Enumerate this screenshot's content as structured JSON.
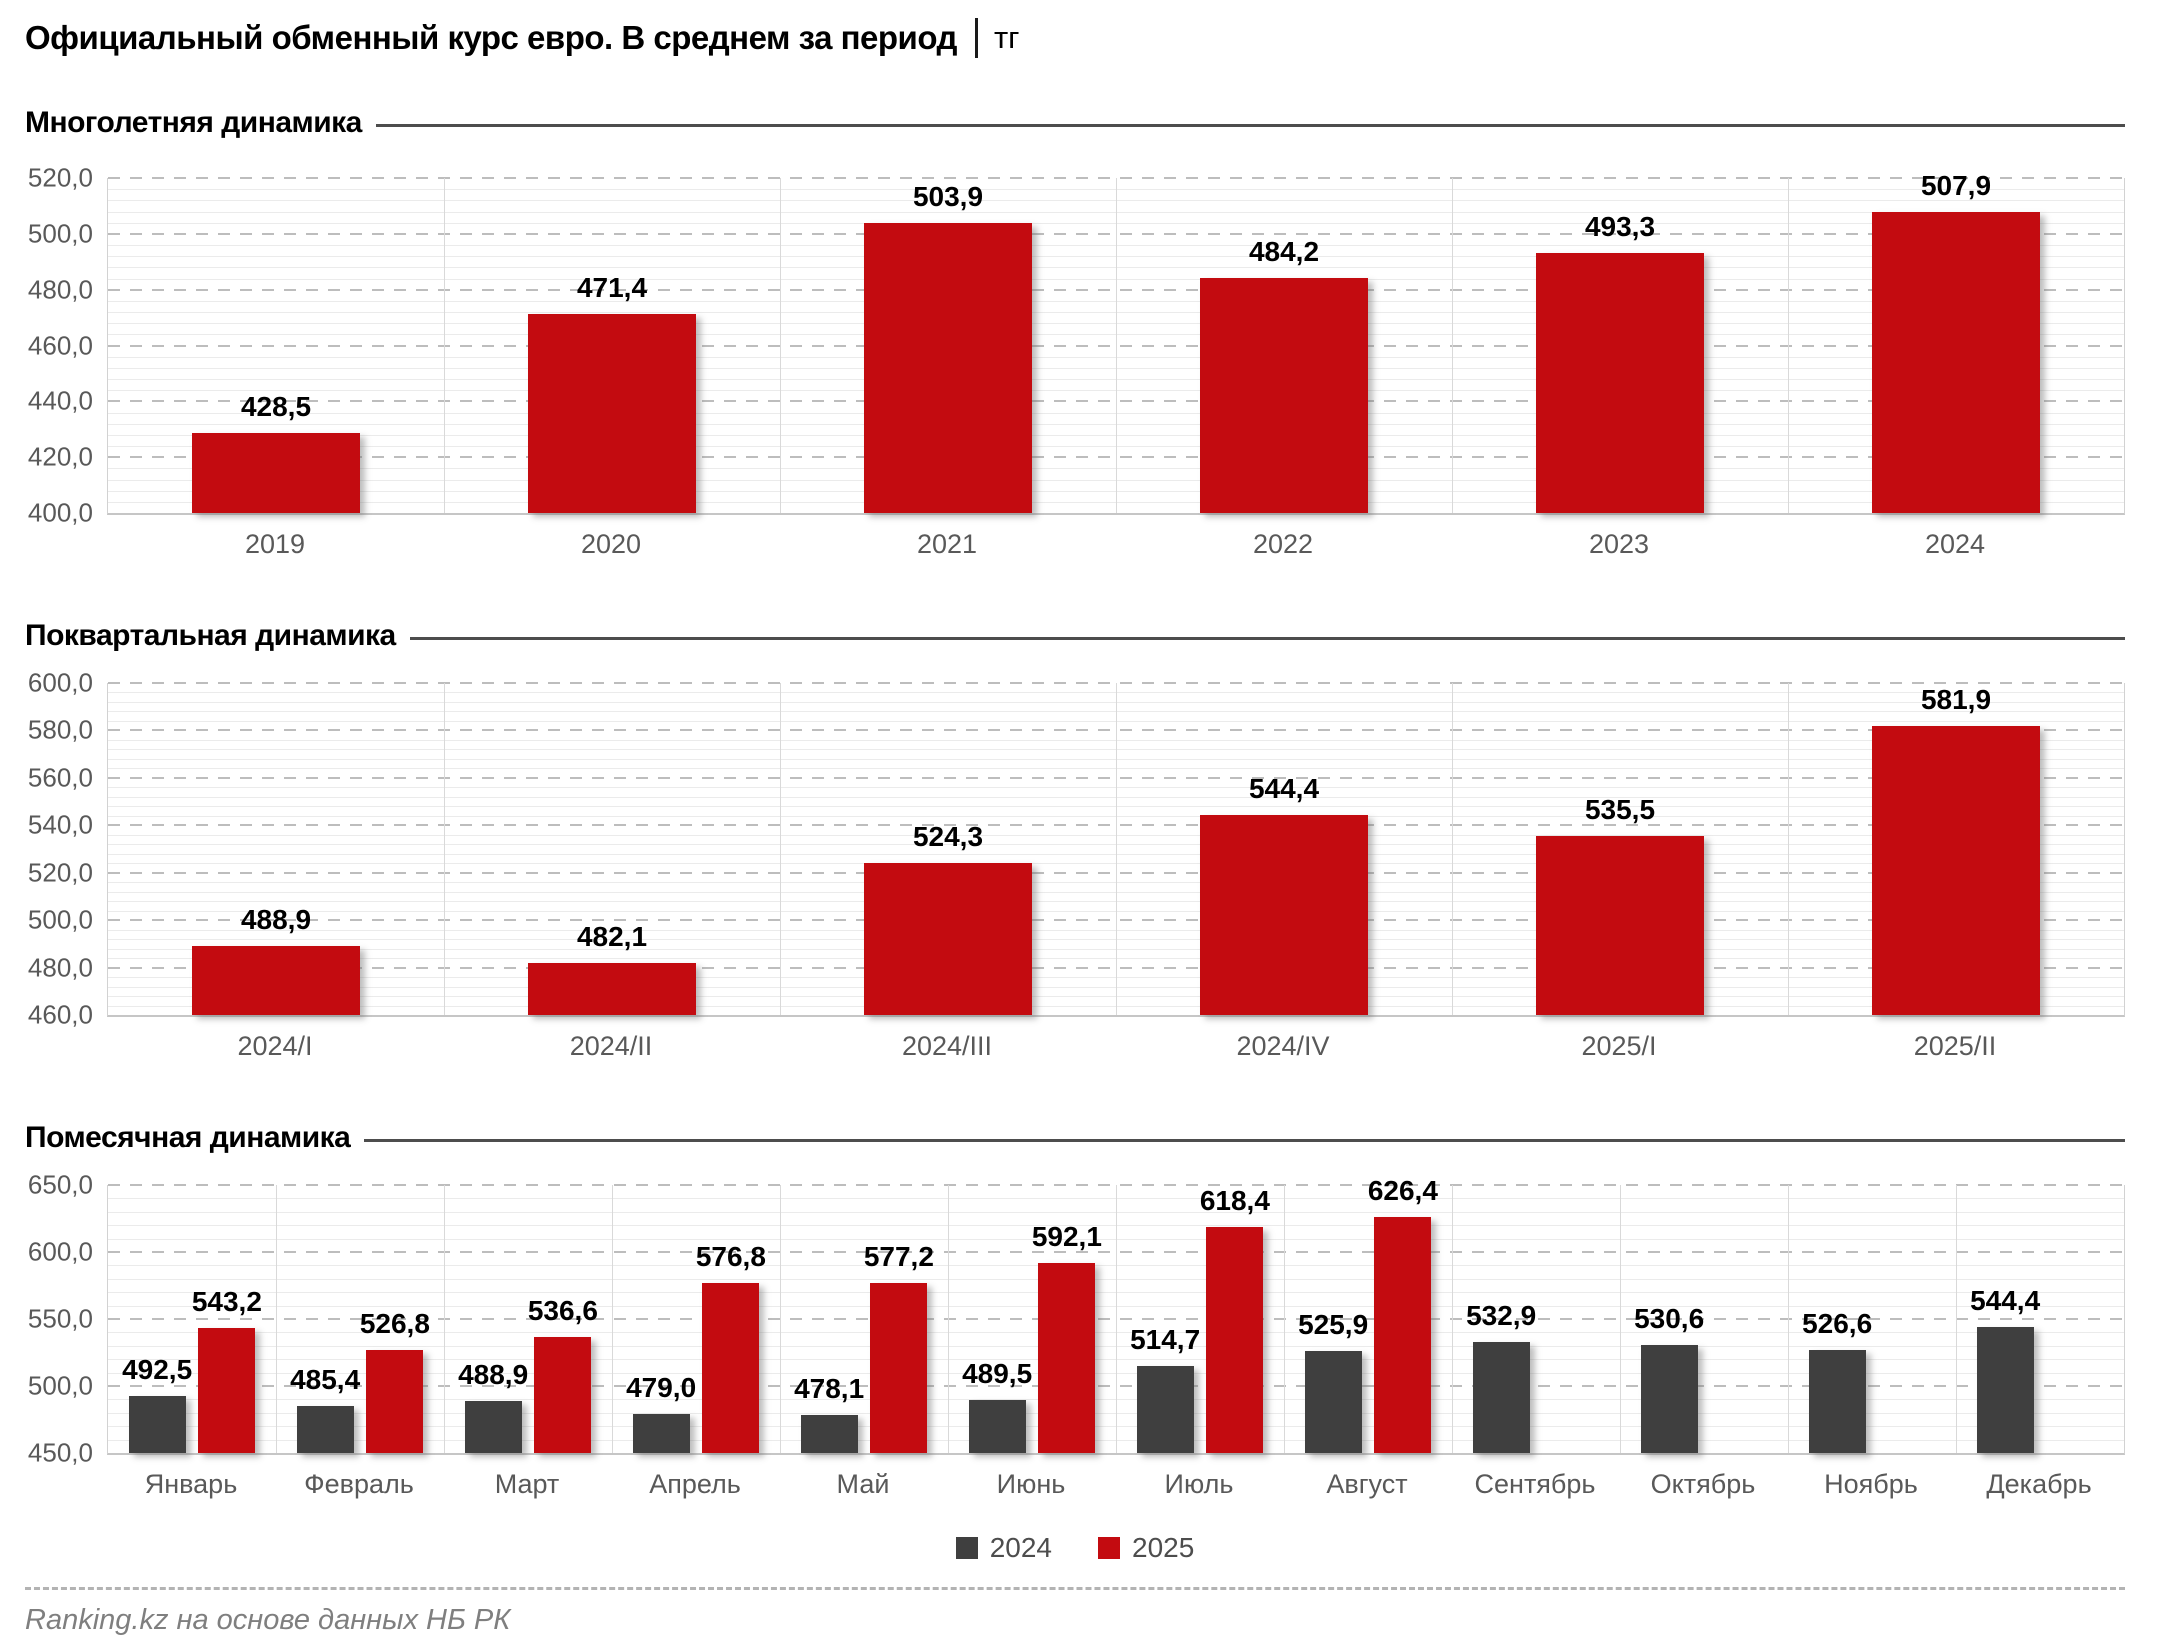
{
  "header": {
    "title_main": "Официальный обменный курс евро. В среднем за период",
    "title_separator": "│",
    "title_unit": "тг"
  },
  "footer": {
    "source": "Ranking.kz на основе данных НБ РК"
  },
  "colors": {
    "bar_red": "#c30b10",
    "bar_gray": "#3f3f3f",
    "axis_text": "#595959",
    "section_rule": "#4d4d4d"
  },
  "legend": {
    "items": [
      {
        "label": "2024",
        "color": "#3f3f3f"
      },
      {
        "label": "2025",
        "color": "#c30b10"
      }
    ]
  },
  "chart_data": [
    {
      "type": "bar",
      "section_title": "Многолетняя динамика",
      "categories": [
        "2019",
        "2020",
        "2021",
        "2022",
        "2023",
        "2024"
      ],
      "values": [
        428.5,
        471.4,
        503.9,
        484.2,
        493.3,
        507.9
      ],
      "value_labels": [
        "428,5",
        "471,4",
        "503,9",
        "484,2",
        "493,3",
        "507,9"
      ],
      "bar_color": "#c30b10",
      "ylim": [
        400,
        520
      ],
      "y_major": 20,
      "y_minor": 4,
      "grid": true,
      "legend_position": "none"
    },
    {
      "type": "bar",
      "section_title": "Поквартальная динамика",
      "categories": [
        "2024/I",
        "2024/II",
        "2024/III",
        "2024/IV",
        "2025/I",
        "2025/II"
      ],
      "values": [
        488.9,
        482.1,
        524.3,
        544.4,
        535.5,
        581.9
      ],
      "value_labels": [
        "488,9",
        "482,1",
        "524,3",
        "544,4",
        "535,5",
        "581,9"
      ],
      "bar_color": "#c30b10",
      "ylim": [
        460,
        600
      ],
      "y_major": 20,
      "y_minor": 4,
      "grid": true,
      "legend_position": "none"
    },
    {
      "type": "bar",
      "section_title": "Помесячная динамика",
      "categories": [
        "Январь",
        "Февраль",
        "Март",
        "Апрель",
        "Май",
        "Июнь",
        "Июль",
        "Август",
        "Сентябрь",
        "Октябрь",
        "Ноябрь",
        "Декабрь"
      ],
      "series": [
        {
          "name": "2024",
          "color": "#3f3f3f",
          "values": [
            492.5,
            485.4,
            488.9,
            479.0,
            478.1,
            489.5,
            514.7,
            525.9,
            532.9,
            530.6,
            526.6,
            544.4
          ],
          "value_labels": [
            "492,5",
            "485,4",
            "488,9",
            "479,0",
            "478,1",
            "489,5",
            "514,7",
            "525,9",
            "532,9",
            "530,6",
            "526,6",
            "544,4"
          ]
        },
        {
          "name": "2025",
          "color": "#c30b10",
          "values": [
            543.2,
            526.8,
            536.6,
            576.8,
            577.2,
            592.1,
            618.4,
            626.4,
            null,
            null,
            null,
            null
          ],
          "value_labels": [
            "543,2",
            "526,8",
            "536,6",
            "576,8",
            "577,2",
            "592,1",
            "618,4",
            "626,4",
            null,
            null,
            null,
            null
          ]
        }
      ],
      "ylim": [
        450,
        650
      ],
      "y_major": 50,
      "y_minor": 10,
      "grid": true,
      "legend_position": "bottom"
    }
  ]
}
